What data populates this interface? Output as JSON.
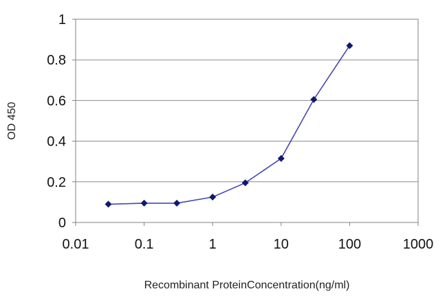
{
  "chart_data": {
    "type": "line",
    "xscale": "log",
    "xlabel": "Recombinant ProteinConcentration(ng/ml)",
    "ylabel": "OD 450",
    "xlim": [
      0.01,
      1000
    ],
    "ylim": [
      0,
      1
    ],
    "xticks": [
      0.01,
      0.1,
      1,
      10,
      100,
      1000
    ],
    "xtick_labels": [
      "0.01",
      "0.1",
      "1",
      "10",
      "100",
      "1000"
    ],
    "yticks": [
      0,
      0.2,
      0.4,
      0.6,
      0.8,
      1
    ],
    "ytick_labels": [
      "0",
      "0.2",
      "0.4",
      "0.6",
      "0.8",
      "1"
    ],
    "grid": "horizontal",
    "series": [
      {
        "x": [
          0.03,
          0.1,
          0.3,
          1,
          3,
          10,
          30,
          100
        ],
        "y": [
          0.09,
          0.095,
          0.095,
          0.125,
          0.195,
          0.315,
          0.605,
          0.87
        ]
      }
    ],
    "line_color": "#4646b4",
    "marker_color": "#0f1a6e"
  }
}
